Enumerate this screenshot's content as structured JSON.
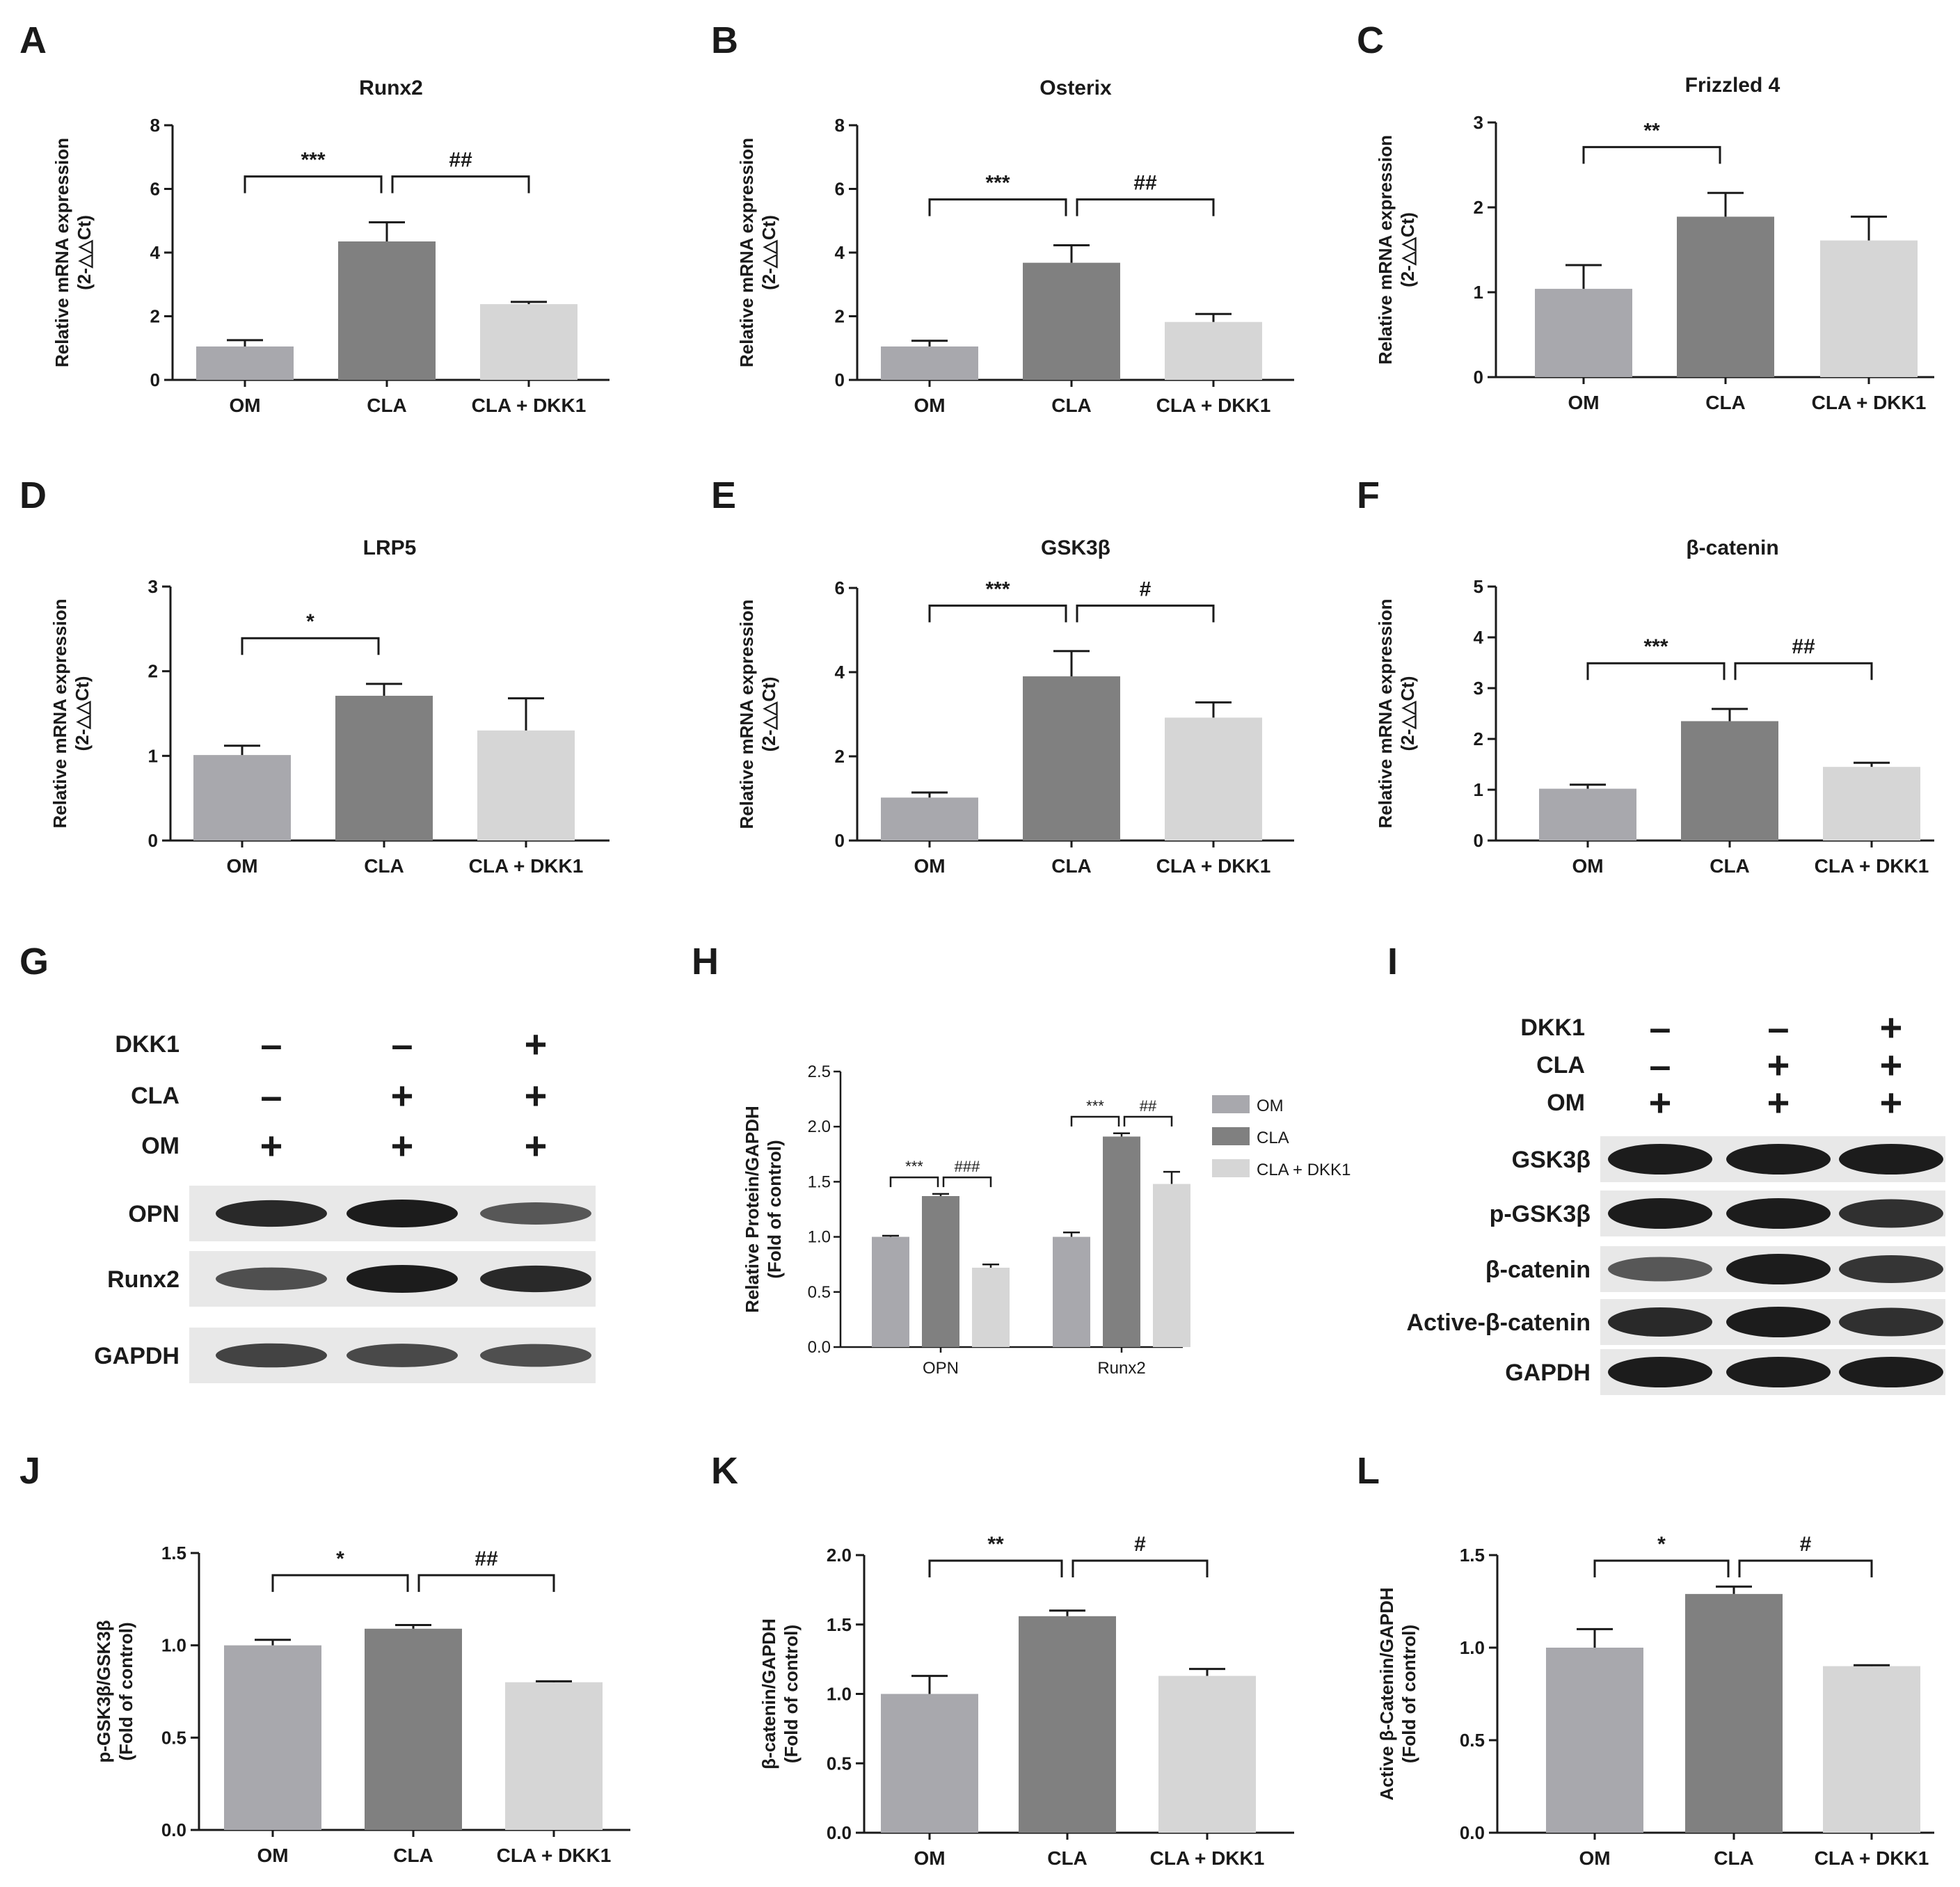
{
  "colors": {
    "OM": "#a8a8ad",
    "CLA": "#808080",
    "CLA_DKK1": "#d6d6d6",
    "axis": "#1a1a1a",
    "blot_bg": "#e8e8e8",
    "band": "#111111"
  },
  "chart_data": [
    {
      "panel": "A",
      "type": "bar",
      "title": "Runx2",
      "ylabel": [
        "Relative mRNA expression",
        "(2-△△Ct)"
      ],
      "categories": [
        "OM",
        "CLA",
        "CLA + DKK1"
      ],
      "values": [
        1.05,
        4.35,
        2.38
      ],
      "errors": [
        0.2,
        0.6,
        0.07
      ],
      "ylim": [
        0,
        8
      ],
      "yticks": [
        "0",
        "2",
        "4",
        "6",
        "8"
      ],
      "significance": [
        {
          "from": 0,
          "to": 1,
          "label": "***"
        },
        {
          "from": 1,
          "to": 2,
          "label": "##"
        }
      ]
    },
    {
      "panel": "B",
      "type": "bar",
      "title": "Osterix",
      "ylabel": [
        "Relative mRNA expression",
        "(2-△△Ct)"
      ],
      "categories": [
        "OM",
        "CLA",
        "CLA + DKK1"
      ],
      "values": [
        1.05,
        3.68,
        1.82
      ],
      "errors": [
        0.18,
        0.55,
        0.25
      ],
      "ylim": [
        0,
        8
      ],
      "yticks": [
        "0",
        "2",
        "4",
        "6",
        "8"
      ],
      "significance": [
        {
          "from": 0,
          "to": 1,
          "label": "***"
        },
        {
          "from": 1,
          "to": 2,
          "label": "##"
        }
      ]
    },
    {
      "panel": "C",
      "type": "bar",
      "title": "Frizzled 4",
      "ylabel": [
        "Relative mRNA expression",
        "(2-△△Ct)"
      ],
      "categories": [
        "OM",
        "CLA",
        "CLA + DKK1"
      ],
      "values": [
        1.04,
        1.89,
        1.61
      ],
      "errors": [
        0.28,
        0.28,
        0.28
      ],
      "ylim": [
        0,
        3
      ],
      "yticks": [
        "0",
        "1",
        "2",
        "3"
      ],
      "significance": [
        {
          "from": 0,
          "to": 1,
          "label": "**"
        }
      ]
    },
    {
      "panel": "D",
      "type": "bar",
      "title": "LRP5",
      "ylabel": [
        "Relative mRNA expression",
        "(2-△△Ct)"
      ],
      "categories": [
        "OM",
        "CLA",
        "CLA + DKK1"
      ],
      "values": [
        1.01,
        1.71,
        1.3
      ],
      "errors": [
        0.11,
        0.14,
        0.38
      ],
      "ylim": [
        0,
        3
      ],
      "yticks": [
        "0",
        "1",
        "2",
        "3"
      ],
      "significance": [
        {
          "from": 0,
          "to": 1,
          "label": "*"
        }
      ]
    },
    {
      "panel": "E",
      "type": "bar",
      "title": "GSK3β",
      "ylabel": [
        "Relative mRNA expression",
        "(2-△△Ct)"
      ],
      "categories": [
        "OM",
        "CLA",
        "CLA + DKK1"
      ],
      "values": [
        1.02,
        3.9,
        2.92
      ],
      "errors": [
        0.12,
        0.6,
        0.36
      ],
      "ylim": [
        0,
        6
      ],
      "yticks": [
        "0",
        "2",
        "4",
        "6"
      ],
      "significance": [
        {
          "from": 0,
          "to": 1,
          "label": "***"
        },
        {
          "from": 1,
          "to": 2,
          "label": "#"
        }
      ]
    },
    {
      "panel": "F",
      "type": "bar",
      "title": "β-catenin",
      "ylabel": [
        "Relative mRNA expression",
        "(2-△△Ct)"
      ],
      "categories": [
        "OM",
        "CLA",
        "CLA + DKK1"
      ],
      "values": [
        1.02,
        2.35,
        1.45
      ],
      "errors": [
        0.08,
        0.24,
        0.08
      ],
      "ylim": [
        0,
        5
      ],
      "yticks": [
        "0",
        "1",
        "2",
        "3",
        "4",
        "5"
      ],
      "significance": [
        {
          "from": 0,
          "to": 1,
          "label": "***"
        },
        {
          "from": 1,
          "to": 2,
          "label": "##"
        }
      ]
    },
    {
      "panel": "H",
      "type": "bar",
      "title": "",
      "ylabel": [
        "Relative Protein/GAPDH",
        "(Fold of control)"
      ],
      "groups": [
        "OPN",
        "Runx2"
      ],
      "legend": [
        "OM",
        "CLA",
        "CLA + DKK1"
      ],
      "series": [
        {
          "name": "OM",
          "values": [
            1.0,
            1.0
          ],
          "errors": [
            0.01,
            0.04
          ]
        },
        {
          "name": "CLA",
          "values": [
            1.37,
            1.91
          ],
          "errors": [
            0.02,
            0.03
          ]
        },
        {
          "name": "CLA + DKK1",
          "values": [
            0.72,
            1.48
          ],
          "errors": [
            0.03,
            0.11
          ]
        }
      ],
      "ylim": [
        0,
        2.5
      ],
      "yticks": [
        "0.0",
        "0.5",
        "1.0",
        "1.5",
        "2.0",
        "2.5"
      ],
      "significance": [
        {
          "group": 0,
          "from": 0,
          "to": 1,
          "label": "***"
        },
        {
          "group": 0,
          "from": 1,
          "to": 2,
          "label": "###"
        },
        {
          "group": 1,
          "from": 0,
          "to": 1,
          "label": "***"
        },
        {
          "group": 1,
          "from": 1,
          "to": 2,
          "label": "##"
        }
      ]
    },
    {
      "panel": "J",
      "type": "bar",
      "title": "",
      "ylabel": [
        "p-GSK3β/GSK3β",
        "(Fold of control)"
      ],
      "categories": [
        "OM",
        "CLA",
        "CLA + DKK1"
      ],
      "values": [
        1.0,
        1.09,
        0.8
      ],
      "errors": [
        0.03,
        0.02,
        0.005
      ],
      "ylim": [
        0,
        1.5
      ],
      "yticks": [
        "0.0",
        "0.5",
        "1.0",
        "1.5"
      ],
      "significance": [
        {
          "from": 0,
          "to": 1,
          "label": "*"
        },
        {
          "from": 1,
          "to": 2,
          "label": "##"
        }
      ]
    },
    {
      "panel": "K",
      "type": "bar",
      "title": "",
      "ylabel": [
        "β-catenin/GAPDH",
        "(Fold of control)"
      ],
      "categories": [
        "OM",
        "CLA",
        "CLA + DKK1"
      ],
      "values": [
        1.0,
        1.56,
        1.13
      ],
      "errors": [
        0.13,
        0.04,
        0.05
      ],
      "ylim": [
        0,
        2.0
      ],
      "yticks": [
        "0.0",
        "0.5",
        "1.0",
        "1.5",
        "2.0"
      ],
      "significance": [
        {
          "from": 0,
          "to": 1,
          "label": "**"
        },
        {
          "from": 1,
          "to": 2,
          "label": "#"
        }
      ]
    },
    {
      "panel": "L",
      "type": "bar",
      "title": "",
      "ylabel": [
        "Active β-Catenin/GAPDH",
        "(Fold of control)"
      ],
      "categories": [
        "OM",
        "CLA",
        "CLA + DKK1"
      ],
      "values": [
        1.0,
        1.29,
        0.9
      ],
      "errors": [
        0.1,
        0.04,
        0.005
      ],
      "ylim": [
        0,
        1.5
      ],
      "yticks": [
        "0.0",
        "0.5",
        "1.0",
        "1.5"
      ],
      "significance": [
        {
          "from": 0,
          "to": 1,
          "label": "*"
        },
        {
          "from": 1,
          "to": 2,
          "label": "#"
        }
      ]
    }
  ],
  "blots": {
    "G": {
      "panel": "G",
      "treatments": [
        {
          "name": "DKK1",
          "signs": [
            "–",
            "–",
            "+"
          ]
        },
        {
          "name": "CLA",
          "signs": [
            "–",
            "+",
            "+"
          ]
        },
        {
          "name": "OM",
          "signs": [
            "+",
            "+",
            "+"
          ]
        }
      ],
      "rows": [
        {
          "name": "OPN",
          "intensity": [
            0.9,
            1.0,
            0.55
          ]
        },
        {
          "name": "Runx2",
          "intensity": [
            0.6,
            1.0,
            0.9
          ]
        },
        {
          "name": "GAPDH",
          "intensity": [
            0.7,
            0.65,
            0.6
          ]
        }
      ]
    },
    "I": {
      "panel": "I",
      "treatments": [
        {
          "name": "DKK1",
          "signs": [
            "–",
            "–",
            "+"
          ]
        },
        {
          "name": "CLA",
          "signs": [
            "–",
            "+",
            "+"
          ]
        },
        {
          "name": "OM",
          "signs": [
            "+",
            "+",
            "+"
          ]
        }
      ],
      "rows": [
        {
          "name": "GSK3β",
          "intensity": [
            1.0,
            1.0,
            1.0
          ]
        },
        {
          "name": "p-GSK3β",
          "intensity": [
            1.0,
            1.0,
            0.85
          ]
        },
        {
          "name": "β-catenin",
          "intensity": [
            0.55,
            1.0,
            0.8
          ]
        },
        {
          "name": "Active-β-catenin",
          "intensity": [
            0.9,
            1.0,
            0.85
          ]
        },
        {
          "name": "GAPDH",
          "intensity": [
            1.0,
            1.0,
            1.0
          ]
        }
      ]
    }
  }
}
